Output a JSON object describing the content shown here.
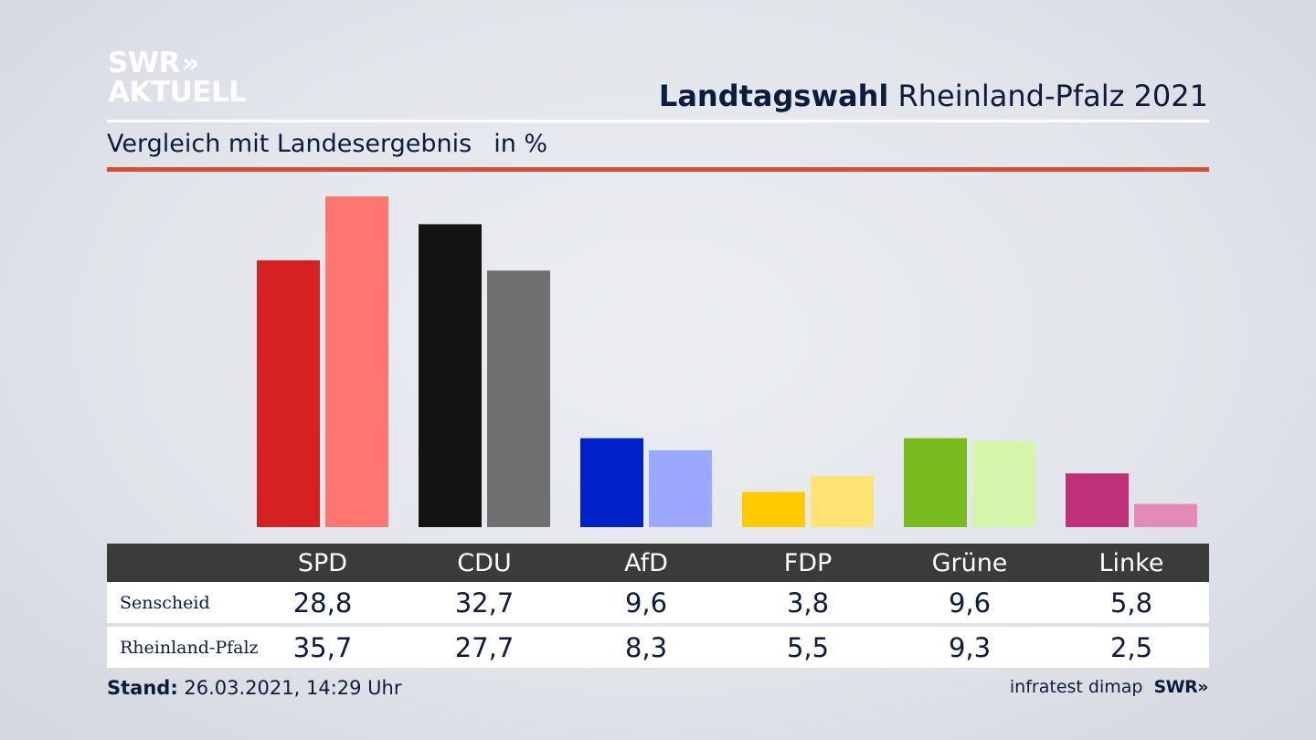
{
  "header": {
    "logo_line1": "SWR",
    "logo_chevrons": "»",
    "logo_line2": "AKTUELL",
    "title_bold": "Landtagswahl",
    "title_rest": " Rheinland-Pfalz 2021",
    "subtitle": "Vergleich mit Landesergebnis",
    "unit": "in %"
  },
  "footer": {
    "stand_label": "Stand:",
    "stand_value": " 26.03.2021, 14:29 Uhr",
    "source": "infratest dimap",
    "brand": "SWR»"
  },
  "chart_data": {
    "type": "bar",
    "categories": [
      "SPD",
      "CDU",
      "AfD",
      "FDP",
      "Grüne",
      "Linke"
    ],
    "series": [
      {
        "name": "Senscheid",
        "values": [
          28.8,
          32.7,
          9.6,
          3.8,
          9.6,
          5.8
        ],
        "values_display": [
          "28,8",
          "32,7",
          "9,6",
          "3,8",
          "9,6",
          "5,8"
        ],
        "colors": [
          "#d72022",
          "#131313",
          "#0020c8",
          "#ffcb00",
          "#78bc1e",
          "#c03078"
        ]
      },
      {
        "name": "Rheinland-Pfalz",
        "values": [
          35.7,
          27.7,
          8.3,
          5.5,
          9.3,
          2.5
        ],
        "values_display": [
          "35,7",
          "27,7",
          "8,3",
          "5,5",
          "9,3",
          "2,5"
        ],
        "colors": [
          "#ff7570",
          "#717070",
          "#9aa9ff",
          "#ffe473",
          "#d5f5aa",
          "#e28bb9"
        ]
      }
    ],
    "ylim": [
      0,
      35.7
    ],
    "grid": false
  }
}
